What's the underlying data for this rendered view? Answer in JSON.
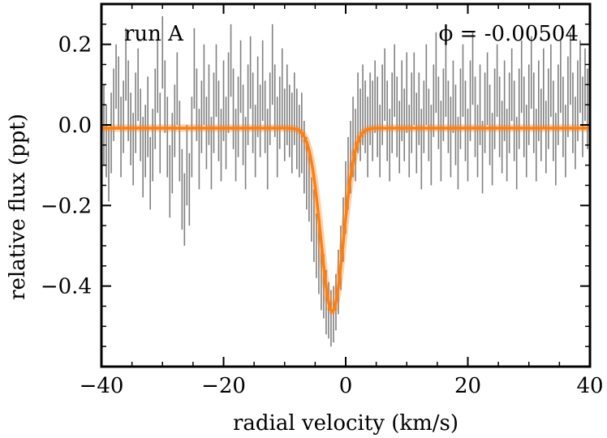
{
  "chart_data": {
    "type": "scatter",
    "title": "",
    "xlabel": "radial velocity (km/s)",
    "ylabel": "relative flux (ppt)",
    "xlim": [
      -40,
      40
    ],
    "ylim": [
      -0.6,
      0.3
    ],
    "x_ticks": [
      -40,
      -20,
      0,
      20,
      40
    ],
    "x_tick_labels": [
      "−40",
      "−20",
      "0",
      "20",
      "40"
    ],
    "y_ticks": [
      -0.4,
      -0.2,
      0.0,
      0.2
    ],
    "y_tick_labels": [
      "−0.4",
      "−0.2",
      "0.0",
      "0.2"
    ],
    "grid": false,
    "annotations": {
      "run_label": "run A",
      "phase_label": "ϕ = -0.00504"
    },
    "model": {
      "name": "model fit",
      "color": "#ff7f0e",
      "baseline": -0.008,
      "depth": 0.455,
      "center": -2.2,
      "sigma": 1.85
    },
    "series": [
      {
        "name": "data",
        "color": "#808080",
        "points": [
          {
            "x": -39.6,
            "y": 0.0,
            "err": 0.1
          },
          {
            "x": -39.2,
            "y": -0.04,
            "err": 0.09
          },
          {
            "x": -38.8,
            "y": -0.1,
            "err": 0.09
          },
          {
            "x": -38.4,
            "y": -0.02,
            "err": 0.1
          },
          {
            "x": -38.0,
            "y": 0.05,
            "err": 0.09
          },
          {
            "x": -37.6,
            "y": 0.12,
            "err": 0.08
          },
          {
            "x": -37.2,
            "y": 0.08,
            "err": 0.09
          },
          {
            "x": -36.8,
            "y": -0.03,
            "err": 0.1
          },
          {
            "x": -36.4,
            "y": 0.02,
            "err": 0.09
          },
          {
            "x": -36.0,
            "y": 0.15,
            "err": 0.09
          },
          {
            "x": -35.6,
            "y": 0.06,
            "err": 0.1
          },
          {
            "x": -35.2,
            "y": -0.01,
            "err": 0.09
          },
          {
            "x": -34.8,
            "y": -0.06,
            "err": 0.09
          },
          {
            "x": -34.4,
            "y": 0.03,
            "err": 0.1
          },
          {
            "x": -34.0,
            "y": 0.1,
            "err": 0.09
          },
          {
            "x": -33.6,
            "y": 0.0,
            "err": 0.09
          },
          {
            "x": -33.2,
            "y": -0.08,
            "err": 0.1
          },
          {
            "x": -32.8,
            "y": -0.04,
            "err": 0.09
          },
          {
            "x": -32.4,
            "y": 0.02,
            "err": 0.1
          },
          {
            "x": -32.0,
            "y": -0.12,
            "err": 0.09
          },
          {
            "x": -31.6,
            "y": -0.05,
            "err": 0.09
          },
          {
            "x": -31.2,
            "y": 0.04,
            "err": 0.1
          },
          {
            "x": -30.8,
            "y": 0.12,
            "err": 0.09
          },
          {
            "x": -30.4,
            "y": -0.02,
            "err": 0.1
          },
          {
            "x": -30.0,
            "y": 0.18,
            "err": 0.09
          },
          {
            "x": -29.6,
            "y": 0.07,
            "err": 0.09
          },
          {
            "x": -29.2,
            "y": -0.03,
            "err": 0.1
          },
          {
            "x": -28.8,
            "y": -0.14,
            "err": 0.09
          },
          {
            "x": -28.4,
            "y": -0.07,
            "err": 0.1
          },
          {
            "x": -28.0,
            "y": 0.01,
            "err": 0.09
          },
          {
            "x": -27.6,
            "y": 0.09,
            "err": 0.09
          },
          {
            "x": -27.2,
            "y": -0.04,
            "err": 0.1
          },
          {
            "x": -26.8,
            "y": -0.16,
            "err": 0.1
          },
          {
            "x": -26.4,
            "y": -0.21,
            "err": 0.09
          },
          {
            "x": -26.0,
            "y": -0.1,
            "err": 0.1
          },
          {
            "x": -25.6,
            "y": -0.16,
            "err": 0.09
          },
          {
            "x": -25.2,
            "y": -0.03,
            "err": 0.1
          },
          {
            "x": -24.8,
            "y": 0.14,
            "err": 0.1
          },
          {
            "x": -24.4,
            "y": 0.05,
            "err": 0.09
          },
          {
            "x": -24.0,
            "y": -0.06,
            "err": 0.1
          },
          {
            "x": -23.6,
            "y": 0.02,
            "err": 0.09
          },
          {
            "x": -23.2,
            "y": 0.1,
            "err": 0.1
          },
          {
            "x": -22.8,
            "y": -0.02,
            "err": 0.09
          },
          {
            "x": -22.4,
            "y": 0.05,
            "err": 0.1
          },
          {
            "x": -22.0,
            "y": -0.07,
            "err": 0.09
          },
          {
            "x": -21.6,
            "y": 0.03,
            "err": 0.1
          },
          {
            "x": -21.2,
            "y": 0.11,
            "err": 0.09
          },
          {
            "x": -20.8,
            "y": 0.01,
            "err": 0.1
          },
          {
            "x": -20.4,
            "y": -0.05,
            "err": 0.09
          },
          {
            "x": -20.0,
            "y": 0.06,
            "err": 0.1
          },
          {
            "x": -19.6,
            "y": -0.02,
            "err": 0.09
          },
          {
            "x": -19.2,
            "y": 0.08,
            "err": 0.1
          },
          {
            "x": -18.8,
            "y": 0.16,
            "err": 0.09
          },
          {
            "x": -18.4,
            "y": 0.04,
            "err": 0.1
          },
          {
            "x": -18.0,
            "y": -0.05,
            "err": 0.09
          },
          {
            "x": -17.6,
            "y": 0.02,
            "err": 0.1
          },
          {
            "x": -17.2,
            "y": 0.12,
            "err": 0.09
          },
          {
            "x": -16.8,
            "y": 0.0,
            "err": 0.1
          },
          {
            "x": -16.4,
            "y": -0.07,
            "err": 0.09
          },
          {
            "x": -16.0,
            "y": 0.05,
            "err": 0.1
          },
          {
            "x": -15.6,
            "y": 0.13,
            "err": 0.09
          },
          {
            "x": -15.2,
            "y": 0.03,
            "err": 0.1
          },
          {
            "x": -14.8,
            "y": -0.04,
            "err": 0.09
          },
          {
            "x": -14.4,
            "y": 0.07,
            "err": 0.1
          },
          {
            "x": -14.0,
            "y": 0.01,
            "err": 0.09
          },
          {
            "x": -13.6,
            "y": 0.11,
            "err": 0.1
          },
          {
            "x": -13.2,
            "y": 0.02,
            "err": 0.09
          },
          {
            "x": -12.8,
            "y": -0.06,
            "err": 0.1
          },
          {
            "x": -12.4,
            "y": 0.04,
            "err": 0.09
          },
          {
            "x": -12.0,
            "y": 0.15,
            "err": 0.1
          },
          {
            "x": -11.6,
            "y": 0.06,
            "err": 0.09
          },
          {
            "x": -11.2,
            "y": -0.03,
            "err": 0.1
          },
          {
            "x": -10.8,
            "y": 0.03,
            "err": 0.09
          },
          {
            "x": -10.4,
            "y": 0.09,
            "err": 0.1
          },
          {
            "x": -10.0,
            "y": 0.0,
            "err": 0.09
          },
          {
            "x": -9.6,
            "y": 0.05,
            "err": 0.1
          },
          {
            "x": -9.2,
            "y": 0.01,
            "err": 0.09
          },
          {
            "x": -8.8,
            "y": -0.02,
            "err": 0.1
          },
          {
            "x": -8.4,
            "y": 0.04,
            "err": 0.09
          },
          {
            "x": -8.0,
            "y": -0.01,
            "err": 0.1
          },
          {
            "x": -7.6,
            "y": -0.04,
            "err": 0.09
          },
          {
            "x": -7.2,
            "y": -0.02,
            "err": 0.1
          },
          {
            "x": -6.8,
            "y": -0.08,
            "err": 0.09
          },
          {
            "x": -6.4,
            "y": -0.12,
            "err": 0.09
          },
          {
            "x": -6.0,
            "y": -0.15,
            "err": 0.09
          },
          {
            "x": -5.6,
            "y": -0.21,
            "err": 0.08
          },
          {
            "x": -5.2,
            "y": -0.25,
            "err": 0.09
          },
          {
            "x": -4.8,
            "y": -0.3,
            "err": 0.08
          },
          {
            "x": -4.4,
            "y": -0.33,
            "err": 0.09
          },
          {
            "x": -4.0,
            "y": -0.38,
            "err": 0.08
          },
          {
            "x": -3.6,
            "y": -0.4,
            "err": 0.08
          },
          {
            "x": -3.2,
            "y": -0.44,
            "err": 0.08
          },
          {
            "x": -2.8,
            "y": -0.46,
            "err": 0.07
          },
          {
            "x": -2.4,
            "y": -0.48,
            "err": 0.07
          },
          {
            "x": -2.0,
            "y": -0.47,
            "err": 0.07
          },
          {
            "x": -1.6,
            "y": -0.44,
            "err": 0.07
          },
          {
            "x": -1.2,
            "y": -0.39,
            "err": 0.08
          },
          {
            "x": -0.8,
            "y": -0.33,
            "err": 0.08
          },
          {
            "x": -0.4,
            "y": -0.26,
            "err": 0.08
          },
          {
            "x": 0.0,
            "y": -0.18,
            "err": 0.09
          },
          {
            "x": 0.4,
            "y": -0.12,
            "err": 0.09
          },
          {
            "x": 0.8,
            "y": -0.08,
            "err": 0.09
          },
          {
            "x": 1.2,
            "y": -0.03,
            "err": 0.1
          },
          {
            "x": 1.6,
            "y": -0.05,
            "err": 0.09
          },
          {
            "x": 2.0,
            "y": 0.03,
            "err": 0.1
          },
          {
            "x": 2.4,
            "y": 0.0,
            "err": 0.09
          },
          {
            "x": 2.8,
            "y": 0.05,
            "err": 0.1
          },
          {
            "x": 3.2,
            "y": 0.02,
            "err": 0.09
          },
          {
            "x": 3.6,
            "y": -0.03,
            "err": 0.1
          },
          {
            "x": 4.0,
            "y": 0.04,
            "err": 0.09
          },
          {
            "x": 4.4,
            "y": 0.01,
            "err": 0.1
          },
          {
            "x": 4.8,
            "y": 0.07,
            "err": 0.09
          },
          {
            "x": 5.2,
            "y": 0.02,
            "err": 0.1
          },
          {
            "x": 5.6,
            "y": -0.04,
            "err": 0.09
          },
          {
            "x": 6.0,
            "y": 0.05,
            "err": 0.1
          },
          {
            "x": 6.4,
            "y": 0.1,
            "err": 0.09
          },
          {
            "x": 6.8,
            "y": 0.01,
            "err": 0.1
          },
          {
            "x": 7.2,
            "y": -0.05,
            "err": 0.09
          },
          {
            "x": 7.6,
            "y": 0.03,
            "err": 0.1
          },
          {
            "x": 8.0,
            "y": 0.11,
            "err": 0.09
          },
          {
            "x": 8.4,
            "y": 0.02,
            "err": 0.1
          },
          {
            "x": 8.8,
            "y": -0.03,
            "err": 0.09
          },
          {
            "x": 9.2,
            "y": 0.06,
            "err": 0.1
          },
          {
            "x": 9.6,
            "y": 0.0,
            "err": 0.09
          },
          {
            "x": 10.0,
            "y": 0.08,
            "err": 0.1
          },
          {
            "x": 10.4,
            "y": -0.04,
            "err": 0.09
          },
          {
            "x": 10.8,
            "y": 0.03,
            "err": 0.1
          },
          {
            "x": 11.2,
            "y": 0.09,
            "err": 0.09
          },
          {
            "x": 11.6,
            "y": -0.02,
            "err": 0.1
          },
          {
            "x": 12.0,
            "y": 0.04,
            "err": 0.09
          },
          {
            "x": 12.4,
            "y": -0.06,
            "err": 0.1
          },
          {
            "x": 12.8,
            "y": 0.02,
            "err": 0.09
          },
          {
            "x": 13.2,
            "y": 0.1,
            "err": 0.1
          },
          {
            "x": 13.6,
            "y": 0.0,
            "err": 0.09
          },
          {
            "x": 14.0,
            "y": -0.05,
            "err": 0.1
          },
          {
            "x": 14.4,
            "y": 0.06,
            "err": 0.09
          },
          {
            "x": 14.8,
            "y": 0.13,
            "err": 0.1
          },
          {
            "x": 15.2,
            "y": 0.03,
            "err": 0.09
          },
          {
            "x": 15.6,
            "y": -0.04,
            "err": 0.1
          },
          {
            "x": 16.0,
            "y": 0.05,
            "err": 0.09
          },
          {
            "x": 16.4,
            "y": 0.12,
            "err": 0.1
          },
          {
            "x": 16.8,
            "y": 0.02,
            "err": 0.09
          },
          {
            "x": 17.2,
            "y": -0.03,
            "err": 0.1
          },
          {
            "x": 17.6,
            "y": 0.07,
            "err": 0.09
          },
          {
            "x": 18.0,
            "y": 0.0,
            "err": 0.1
          },
          {
            "x": 18.4,
            "y": -0.07,
            "err": 0.09
          },
          {
            "x": 18.8,
            "y": 0.04,
            "err": 0.1
          },
          {
            "x": 19.2,
            "y": 0.11,
            "err": 0.09
          },
          {
            "x": 19.6,
            "y": 0.01,
            "err": 0.1
          },
          {
            "x": 20.0,
            "y": -0.05,
            "err": 0.09
          },
          {
            "x": 20.4,
            "y": 0.06,
            "err": 0.1
          },
          {
            "x": 20.8,
            "y": 0.14,
            "err": 0.09
          },
          {
            "x": 21.2,
            "y": 0.02,
            "err": 0.1
          },
          {
            "x": 21.6,
            "y": -0.04,
            "err": 0.09
          },
          {
            "x": 22.0,
            "y": 0.05,
            "err": 0.1
          },
          {
            "x": 22.4,
            "y": -0.08,
            "err": 0.09
          },
          {
            "x": 22.8,
            "y": 0.03,
            "err": 0.1
          },
          {
            "x": 23.2,
            "y": 0.09,
            "err": 0.09
          },
          {
            "x": 23.6,
            "y": 0.0,
            "err": 0.1
          },
          {
            "x": 24.0,
            "y": -0.06,
            "err": 0.09
          },
          {
            "x": 24.4,
            "y": 0.04,
            "err": 0.1
          },
          {
            "x": 24.8,
            "y": 0.11,
            "err": 0.09
          },
          {
            "x": 25.2,
            "y": 0.02,
            "err": 0.1
          },
          {
            "x": 25.6,
            "y": -0.03,
            "err": 0.09
          },
          {
            "x": 26.0,
            "y": 0.06,
            "err": 0.1
          },
          {
            "x": 26.4,
            "y": -0.05,
            "err": 0.09
          },
          {
            "x": 26.8,
            "y": 0.03,
            "err": 0.1
          },
          {
            "x": 27.2,
            "y": 0.1,
            "err": 0.09
          },
          {
            "x": 27.6,
            "y": 0.01,
            "err": 0.1
          },
          {
            "x": 28.0,
            "y": -0.07,
            "err": 0.09
          },
          {
            "x": 28.4,
            "y": 0.04,
            "err": 0.1
          },
          {
            "x": 28.8,
            "y": 0.12,
            "err": 0.09
          },
          {
            "x": 29.2,
            "y": 0.02,
            "err": 0.1
          },
          {
            "x": 29.6,
            "y": -0.04,
            "err": 0.09
          },
          {
            "x": 30.0,
            "y": 0.05,
            "err": 0.1
          },
          {
            "x": 30.4,
            "y": 0.13,
            "err": 0.09
          },
          {
            "x": 30.8,
            "y": 0.03,
            "err": 0.1
          },
          {
            "x": 31.2,
            "y": -0.05,
            "err": 0.09
          },
          {
            "x": 31.6,
            "y": 0.06,
            "err": 0.1
          },
          {
            "x": 32.0,
            "y": 0.0,
            "err": 0.09
          },
          {
            "x": 32.4,
            "y": 0.09,
            "err": 0.1
          },
          {
            "x": 32.8,
            "y": -0.03,
            "err": 0.09
          },
          {
            "x": 33.2,
            "y": 0.04,
            "err": 0.1
          },
          {
            "x": 33.6,
            "y": 0.11,
            "err": 0.09
          },
          {
            "x": 34.0,
            "y": 0.01,
            "err": 0.1
          },
          {
            "x": 34.4,
            "y": -0.06,
            "err": 0.09
          },
          {
            "x": 34.8,
            "y": 0.05,
            "err": 0.1
          },
          {
            "x": 35.2,
            "y": 0.12,
            "err": 0.09
          },
          {
            "x": 35.6,
            "y": 0.02,
            "err": 0.1
          },
          {
            "x": 36.0,
            "y": -0.04,
            "err": 0.09
          },
          {
            "x": 36.4,
            "y": 0.07,
            "err": 0.1
          },
          {
            "x": 36.8,
            "y": 0.14,
            "err": 0.09
          },
          {
            "x": 37.2,
            "y": 0.03,
            "err": 0.1
          },
          {
            "x": 37.6,
            "y": -0.02,
            "err": 0.09
          },
          {
            "x": 38.0,
            "y": 0.06,
            "err": 0.1
          },
          {
            "x": 38.4,
            "y": 0.12,
            "err": 0.09
          },
          {
            "x": 38.8,
            "y": 0.02,
            "err": 0.1
          },
          {
            "x": 39.2,
            "y": 0.1,
            "err": 0.09
          },
          {
            "x": 39.6,
            "y": 0.04,
            "err": 0.1
          }
        ]
      }
    ]
  }
}
